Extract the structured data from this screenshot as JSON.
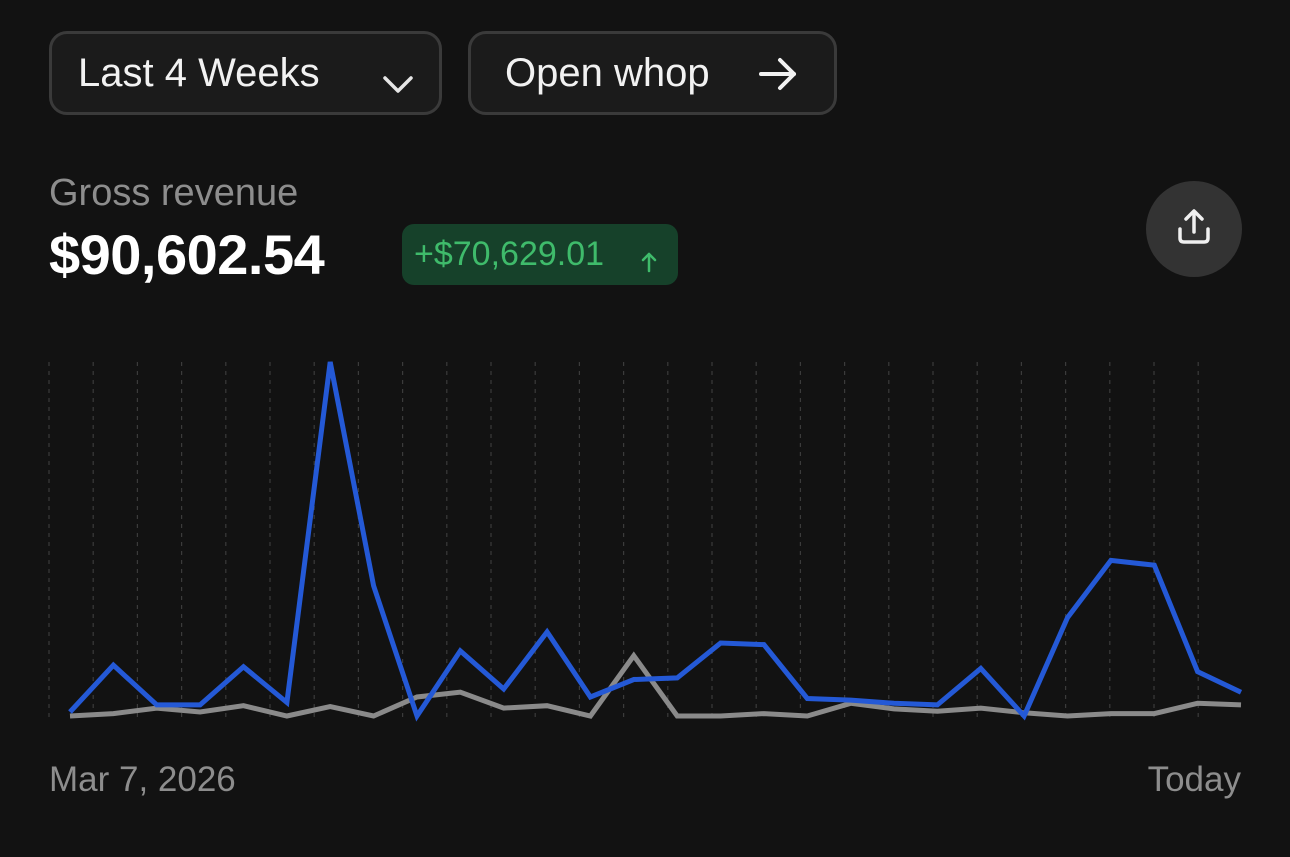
{
  "controls": {
    "range_label": "Last 4 Weeks",
    "open_label": "Open whop"
  },
  "metric": {
    "label": "Gross revenue",
    "value": "$90,602.54",
    "delta": "+$70,629.01",
    "delta_color": "#3fbb6b",
    "delta_bg": "#16412a"
  },
  "share": {
    "icon": "share-upload-icon"
  },
  "chart_data": {
    "type": "line",
    "x_start_label": "Mar 7, 2026",
    "x_end_label": "Today",
    "grid": "vertical-dashed",
    "series": [
      {
        "color": "#2459d6",
        "values": [
          0.5,
          6.4,
          1.4,
          1.4,
          6.2,
          1.7,
          44.6,
          16.4,
          0,
          8.2,
          3.4,
          10.6,
          2.4,
          4.6,
          4.8,
          9.2,
          9.0,
          2.2,
          2.0,
          1.6,
          1.4,
          6.0,
          0,
          12.4,
          19.6,
          19.0,
          5.6,
          3.0
        ]
      },
      {
        "color": "#8a8a8a",
        "values": [
          0,
          0.3,
          1.0,
          0.5,
          1.3,
          0,
          1.2,
          0,
          2.4,
          3.0,
          1.0,
          1.3,
          0,
          7.6,
          0,
          0,
          0.3,
          0,
          1.6,
          0.9,
          0.6,
          1.0,
          0.4,
          0,
          0.3,
          0.3,
          1.6,
          1.4
        ]
      }
    ]
  }
}
